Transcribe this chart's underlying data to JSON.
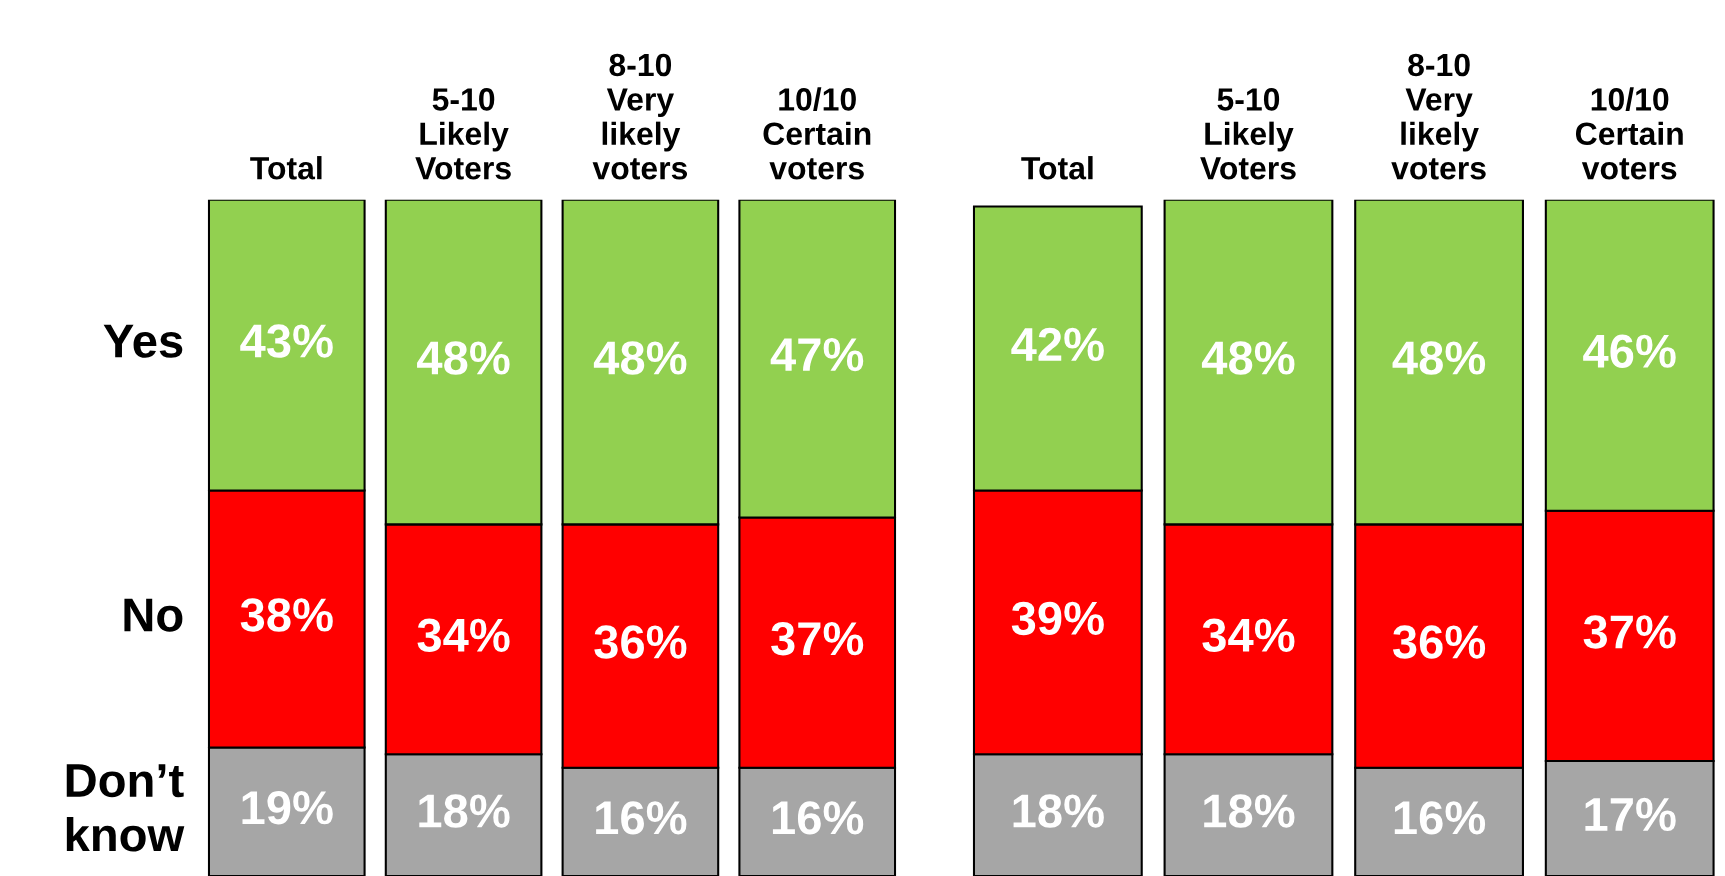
{
  "chart_data": [
    {
      "type": "bar",
      "stacked": true,
      "legend": false,
      "grid": false,
      "tick_labels": "x",
      "categories": [
        "Total",
        "5-10\nLikely\nVoters",
        "8-10\nVery\nlikely\nvoters",
        "10/10\nCertain\nvoters"
      ],
      "series": [
        {
          "name": "Don’t\nknow",
          "color": "#a6a6a6",
          "values": [
            19,
            18,
            16,
            16
          ],
          "value_labels": [
            "19%",
            "18%",
            "16%",
            "16%"
          ]
        },
        {
          "name": "No",
          "color": "#ff0000",
          "values": [
            38,
            34,
            36,
            37
          ],
          "value_labels": [
            "38%",
            "34%",
            "36%",
            "37%"
          ]
        },
        {
          "name": "Yes",
          "color": "#92d050",
          "values": [
            43,
            48,
            48,
            47
          ],
          "value_labels": [
            "43%",
            "48%",
            "48%",
            "47%"
          ]
        }
      ]
    },
    {
      "type": "bar",
      "stacked": true,
      "legend": false,
      "grid": false,
      "tick_labels": "x",
      "categories": [
        "Total",
        "5-10\nLikely\nVoters",
        "8-10\nVery\nlikely\nvoters",
        "10/10\nCertain\nvoters"
      ],
      "series": [
        {
          "color": "#a6a6a6",
          "values": [
            18,
            18,
            16,
            17
          ],
          "value_labels": [
            "18%",
            "18%",
            "16%",
            "17%"
          ]
        },
        {
          "color": "#ff0000",
          "values": [
            39,
            34,
            36,
            37
          ],
          "value_labels": [
            "39%",
            "34%",
            "36%",
            "37%"
          ]
        },
        {
          "color": "#92d050",
          "values": [
            42,
            48,
            48,
            46
          ],
          "value_labels": [
            "42%",
            "48%",
            "48%",
            "46%"
          ]
        }
      ]
    }
  ]
}
